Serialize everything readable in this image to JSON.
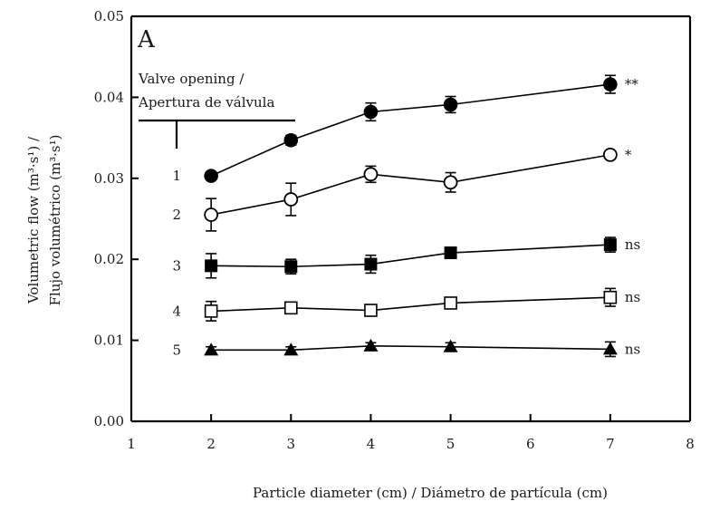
{
  "chart_data": {
    "type": "line",
    "panel_label": "A",
    "xlabel": "Particle diameter (cm) / Diámetro de partícula (cm)",
    "ylabel_line1": "Volumetric flow (m³·s¹) /",
    "ylabel_line2": "Flujo volumétrico (m³·s¹)",
    "xlim": [
      1,
      8
    ],
    "ylim": [
      0,
      0.05
    ],
    "xticks": [
      "1",
      "2",
      "3",
      "4",
      "5",
      "6",
      "7",
      "8"
    ],
    "yticks": [
      "0.00",
      "0.01",
      "0.02",
      "0.03",
      "0.04",
      "0.05"
    ],
    "legend_title_line1": "Valve opening /",
    "legend_title_line2": "Apertura de válvula",
    "x": [
      2,
      3,
      4,
      5,
      7
    ],
    "series": [
      {
        "name": "1",
        "marker": "filled-circle",
        "values": [
          0.0303,
          0.0347,
          0.0382,
          0.0391,
          0.0416
        ],
        "errors": [
          0,
          0.0006,
          0.0011,
          0.001,
          0.0011
        ],
        "significance": "**"
      },
      {
        "name": "2",
        "marker": "open-circle",
        "values": [
          0.0255,
          0.0274,
          0.0305,
          0.0295,
          0.0329
        ],
        "errors": [
          0.002,
          0.002,
          0.001,
          0.0012,
          0.0004
        ],
        "significance": "*"
      },
      {
        "name": "3",
        "marker": "filled-square",
        "values": [
          0.0192,
          0.0191,
          0.0194,
          0.0208,
          0.0218
        ],
        "errors": [
          0.0015,
          0.0009,
          0.0011,
          0.0004,
          0.0009
        ],
        "significance": "ns"
      },
      {
        "name": "4",
        "marker": "open-square",
        "values": [
          0.0136,
          0.014,
          0.0137,
          0.0146,
          0.0153
        ],
        "errors": [
          0.0012,
          0.0004,
          0.0003,
          0.0004,
          0.0011
        ],
        "significance": "ns"
      },
      {
        "name": "5",
        "marker": "filled-triangle",
        "values": [
          0.0088,
          0.0088,
          0.0093,
          0.0092,
          0.0089
        ],
        "errors": [
          0.0004,
          0.0004,
          0.0004,
          0.0005,
          0.0009
        ],
        "significance": "ns"
      }
    ]
  }
}
